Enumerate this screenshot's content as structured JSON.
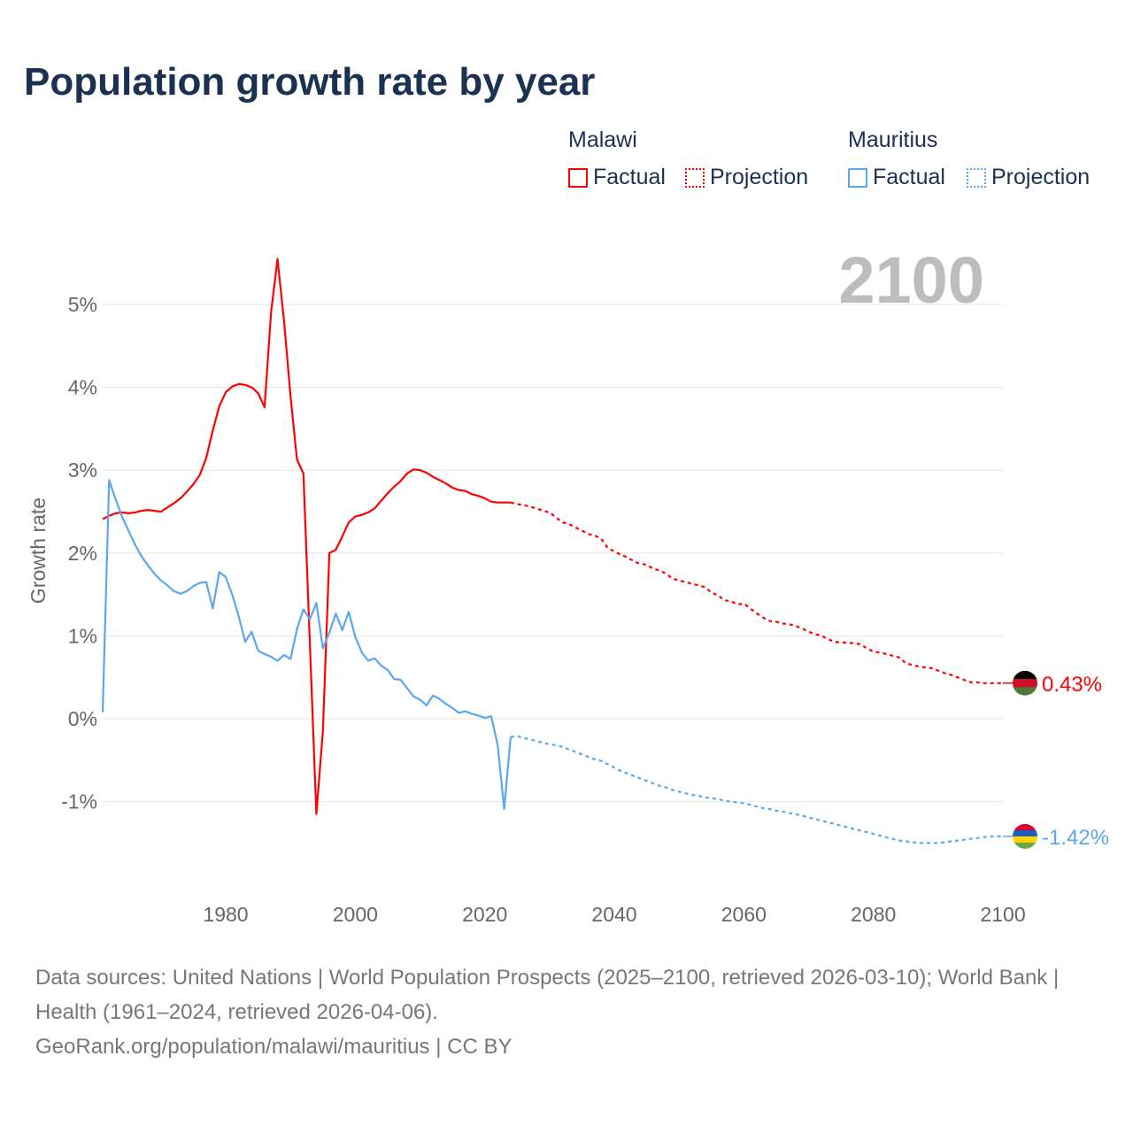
{
  "title": "Population growth rate by year",
  "legend": {
    "groups": [
      {
        "name": "Malawi",
        "factual": "Factual",
        "projection": "Projection",
        "color": "#ff0000"
      },
      {
        "name": "Mauritius",
        "factual": "Factual",
        "projection": "Projection",
        "color": "#5ba7ee"
      }
    ]
  },
  "year_display": "2100",
  "footer": {
    "sources": "Data sources: United Nations | World Population Prospects (2025–2100, retrieved 2026-03-10); World Bank | Health (1961–2024, retrieved 2026-04-06).",
    "credit": "GeoRank.org/population/malawi/mauritius | CC BY"
  },
  "chart_data": {
    "type": "line",
    "title": "Population growth rate by year",
    "ylabel": "Growth rate",
    "xlabel": "",
    "xlim": [
      1961,
      2100
    ],
    "ylim": [
      -1.9,
      5.7
    ],
    "x_ticks": [
      "1980",
      "2000",
      "2020",
      "2040",
      "2060",
      "2080",
      "2100"
    ],
    "x_tick_values": [
      1980,
      2000,
      2020,
      2040,
      2060,
      2080,
      2100
    ],
    "y_ticks": [
      "5%",
      "4%",
      "3%",
      "2%",
      "1%",
      "0%",
      "-1%"
    ],
    "y_tick_values": [
      5,
      4,
      3,
      2,
      1,
      0,
      -1
    ],
    "grid": true,
    "legend_position": "top-right",
    "series": [
      {
        "name": "Malawi",
        "color": "#ff0000",
        "end_label": "0.43%",
        "factual_start": 1961,
        "factual": [
          2.41,
          2.45,
          2.48,
          2.49,
          2.48,
          2.49,
          2.51,
          2.52,
          2.51,
          2.5,
          2.55,
          2.6,
          2.66,
          2.74,
          2.83,
          2.94,
          3.15,
          3.48,
          3.77,
          3.94,
          4.01,
          4.04,
          4.03,
          4.0,
          3.93,
          3.76,
          4.9,
          5.55,
          4.8,
          3.9,
          3.13,
          2.96,
          0.9,
          -1.15,
          -0.15,
          2.0,
          2.04,
          2.2,
          2.37,
          2.44,
          2.46,
          2.49,
          2.54,
          2.63,
          2.72,
          2.8,
          2.87,
          2.96,
          3.01,
          3.0,
          2.97,
          2.92,
          2.88,
          2.84,
          2.79,
          2.76,
          2.75,
          2.71,
          2.69,
          2.66,
          2.62,
          2.61,
          2.61,
          2.61
        ],
        "projection_start": 2024,
        "projection": [
          2.61,
          2.59,
          2.58,
          2.56,
          2.54,
          2.51,
          2.49,
          2.43,
          2.37,
          2.35,
          2.31,
          2.27,
          2.23,
          2.21,
          2.17,
          2.06,
          2.02,
          1.98,
          1.95,
          1.9,
          1.87,
          1.86,
          1.81,
          1.79,
          1.75,
          1.69,
          1.67,
          1.65,
          1.63,
          1.61,
          1.59,
          1.52,
          1.49,
          1.43,
          1.42,
          1.38,
          1.39,
          1.33,
          1.27,
          1.22,
          1.18,
          1.17,
          1.15,
          1.14,
          1.12,
          1.09,
          1.05,
          1.02,
          1.0,
          0.96,
          0.93,
          0.92,
          0.92,
          0.91,
          0.9,
          0.85,
          0.81,
          0.8,
          0.78,
          0.76,
          0.74,
          0.67,
          0.65,
          0.63,
          0.62,
          0.61,
          0.58,
          0.55,
          0.53,
          0.5,
          0.47,
          0.44,
          0.44,
          0.43,
          0.43,
          0.43,
          0.43
        ]
      },
      {
        "name": "Mauritius",
        "color": "#5ba7ee",
        "end_label": "-1.42%",
        "factual_start": 1961,
        "factual": [
          0.08,
          2.88,
          2.65,
          2.44,
          2.27,
          2.1,
          1.96,
          1.85,
          1.75,
          1.67,
          1.61,
          1.54,
          1.51,
          1.54,
          1.6,
          1.64,
          1.65,
          1.33,
          1.77,
          1.71,
          1.5,
          1.24,
          0.93,
          1.05,
          0.82,
          0.78,
          0.75,
          0.7,
          0.77,
          0.72,
          1.08,
          1.32,
          1.2,
          1.4,
          0.85,
          1.04,
          1.27,
          1.07,
          1.29,
          0.99,
          0.8,
          0.7,
          0.73,
          0.64,
          0.59,
          0.48,
          0.47,
          0.37,
          0.27,
          0.23,
          0.16,
          0.28,
          0.24,
          0.18,
          0.13,
          0.07,
          0.09,
          0.06,
          0.04,
          0.01,
          0.03,
          -0.32,
          -1.09,
          -0.22
        ],
        "projection_start": 2024,
        "projection": [
          -0.22,
          -0.21,
          -0.23,
          -0.25,
          -0.27,
          -0.29,
          -0.31,
          -0.32,
          -0.34,
          -0.37,
          -0.4,
          -0.43,
          -0.46,
          -0.49,
          -0.51,
          -0.55,
          -0.59,
          -0.63,
          -0.66,
          -0.69,
          -0.72,
          -0.75,
          -0.78,
          -0.81,
          -0.83,
          -0.86,
          -0.88,
          -0.9,
          -0.92,
          -0.93,
          -0.95,
          -0.96,
          -0.97,
          -0.99,
          -1.0,
          -1.01,
          -1.02,
          -1.04,
          -1.06,
          -1.08,
          -1.09,
          -1.11,
          -1.12,
          -1.14,
          -1.15,
          -1.17,
          -1.19,
          -1.21,
          -1.23,
          -1.25,
          -1.27,
          -1.29,
          -1.31,
          -1.33,
          -1.35,
          -1.37,
          -1.39,
          -1.41,
          -1.43,
          -1.45,
          -1.47,
          -1.48,
          -1.49,
          -1.5,
          -1.5,
          -1.5,
          -1.5,
          -1.49,
          -1.48,
          -1.47,
          -1.46,
          -1.45,
          -1.44,
          -1.43,
          -1.42,
          -1.42,
          -1.42
        ]
      }
    ]
  }
}
